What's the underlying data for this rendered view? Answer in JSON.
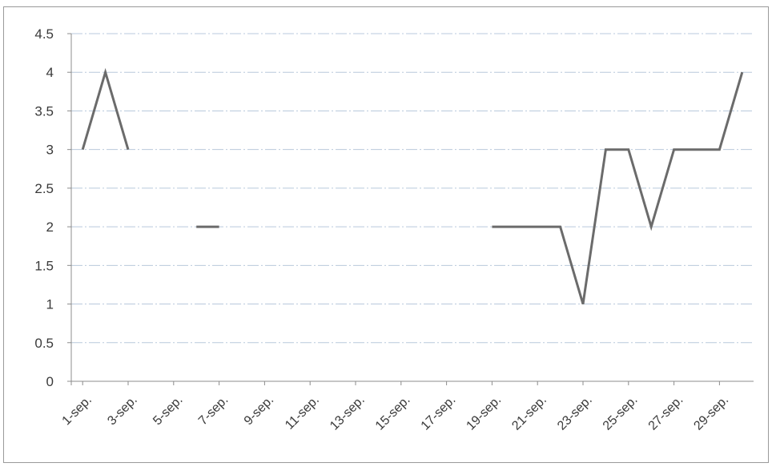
{
  "chart_data": {
    "type": "line",
    "title": "",
    "xlabel": "",
    "ylabel": "",
    "ylim": [
      0,
      4.5
    ],
    "ytick_labels": [
      "0",
      "0.5",
      "1",
      "1.5",
      "2",
      "2.5",
      "3",
      "3.5",
      "4",
      "4.5"
    ],
    "grid": true,
    "legend": "none",
    "x": [
      "1-sep.",
      "2-sep.",
      "3-sep.",
      "4-sep.",
      "5-sep.",
      "6-sep.",
      "7-sep.",
      "8-sep.",
      "9-sep.",
      "10-sep.",
      "11-sep.",
      "12-sep.",
      "13-sep.",
      "14-sep.",
      "15-sep.",
      "16-sep.",
      "17-sep.",
      "18-sep.",
      "19-sep.",
      "20-sep.",
      "21-sep.",
      "22-sep.",
      "23-sep.",
      "24-sep.",
      "25-sep.",
      "26-sep.",
      "27-sep.",
      "28-sep.",
      "29-sep.",
      "30-sep."
    ],
    "xtick_labels": [
      "1-sep.",
      "3-sep.",
      "5-sep.",
      "7-sep.",
      "9-sep.",
      "11-sep.",
      "13-sep.",
      "15-sep.",
      "17-sep.",
      "19-sep.",
      "21-sep.",
      "23-sep.",
      "25-sep.",
      "27-sep.",
      "29-sep."
    ],
    "series": [
      {
        "values": [
          3,
          4,
          3,
          null,
          null,
          2,
          2,
          null,
          null,
          null,
          null,
          null,
          null,
          null,
          null,
          null,
          null,
          null,
          2,
          2,
          2,
          2,
          1,
          3,
          3,
          2,
          3,
          3,
          3,
          4
        ],
        "color": "#6b6b6b"
      }
    ]
  }
}
